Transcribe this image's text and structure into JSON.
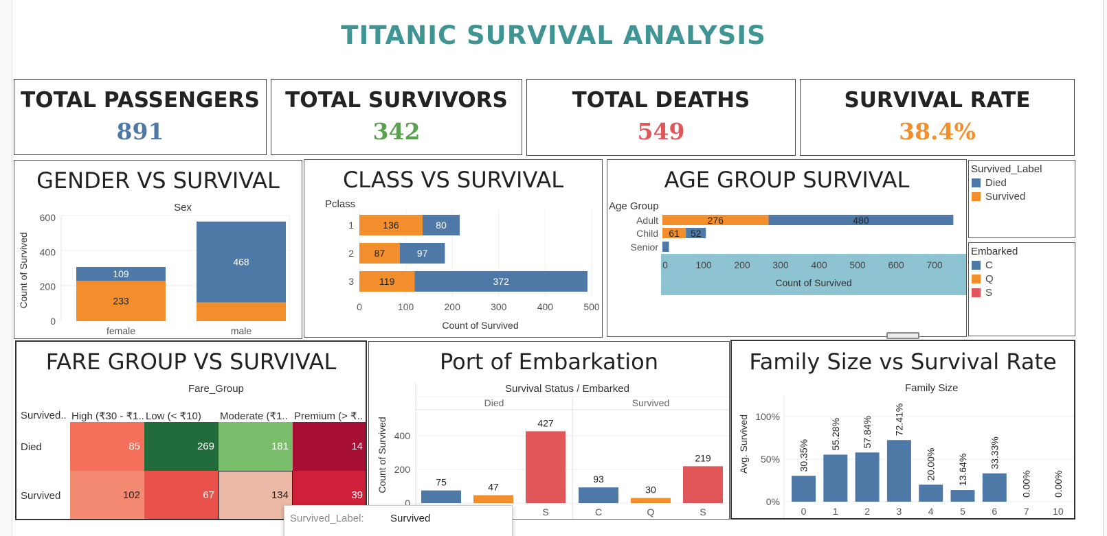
{
  "dashboard": {
    "title": "TITANIC SURVIVAL ANALYSIS"
  },
  "colors": {
    "died": "#4e79a7",
    "survived": "#f28e2b",
    "S": "#e15759",
    "title": "#3f9494",
    "age_highlight": "#8ec3d2"
  },
  "kpis": [
    {
      "label": "TOTAL PASSENGERS",
      "value": "891",
      "color": "#4e79a7"
    },
    {
      "label": "TOTAL SURVIVORS",
      "value": "342",
      "color": "#59a14f"
    },
    {
      "label": "TOTAL DEATHS",
      "value": "549",
      "color": "#e15759"
    },
    {
      "label": "SURVIVAL RATE",
      "value": "38.4%",
      "color": "#f28e2b"
    }
  ],
  "legends": {
    "survived": {
      "title": "Survived_Label",
      "items": [
        {
          "label": "Died",
          "color": "#4e79a7"
        },
        {
          "label": "Survived",
          "color": "#f28e2b"
        }
      ]
    },
    "embarked": {
      "title": "Embarked",
      "items": [
        {
          "label": "C",
          "color": "#4e79a7"
        },
        {
          "label": "Q",
          "color": "#f28e2b"
        },
        {
          "label": "S",
          "color": "#e15759"
        }
      ]
    }
  },
  "tooltip": {
    "key": "Survived_Label:",
    "value": "Survived"
  },
  "panels": {
    "gender": {
      "title": "GENDER VS SURVIVAL",
      "header": "Sex"
    },
    "class": {
      "title": "CLASS VS SURVIVAL",
      "header": "Pclass"
    },
    "age": {
      "title": "AGE GROUP SURVIVAL",
      "header": "Age Group"
    },
    "fare": {
      "title": "FARE GROUP VS SURVIVAL",
      "header": "Fare_Group"
    },
    "port": {
      "title": "Port of Embarkation",
      "header": "Survival Status  /  Embarked"
    },
    "family": {
      "title": "Family Size vs Survival Rate",
      "header": "Family Size"
    }
  },
  "chart_data": [
    {
      "type": "bar",
      "title": "GENDER VS SURVIVAL",
      "xlabel": "Sex",
      "ylabel": "Count of Survived",
      "categories": [
        "female",
        "male"
      ],
      "series": [
        {
          "name": "Survived",
          "values": [
            233,
            109
          ]
        },
        {
          "name": "Died",
          "values": [
            81,
            468
          ]
        }
      ],
      "labels": [
        [
          "233",
          ""
        ],
        [
          "109",
          "468"
        ]
      ],
      "stacked": true,
      "ylim": [
        0,
        620
      ],
      "yticks": [
        "0",
        "200",
        "400",
        "600"
      ]
    },
    {
      "type": "bar",
      "orientation": "horizontal",
      "title": "CLASS VS SURVIVAL",
      "xlabel": "Count of Survived",
      "ylabel": "Pclass",
      "categories": [
        "1",
        "2",
        "3"
      ],
      "series": [
        {
          "name": "Survived",
          "values": [
            136,
            87,
            119
          ]
        },
        {
          "name": "Died",
          "values": [
            80,
            97,
            372
          ]
        }
      ],
      "stacked": true,
      "xlim": [
        0,
        500
      ],
      "xticks": [
        "0",
        "100",
        "200",
        "300",
        "400",
        "500"
      ]
    },
    {
      "type": "bar",
      "orientation": "horizontal",
      "title": "AGE GROUP SURVIVAL",
      "xlabel": "Count of Survived",
      "ylabel": "Age Group",
      "categories": [
        "Adult",
        "Child",
        "Senior"
      ],
      "series": [
        {
          "name": "Survived",
          "values": [
            276,
            61,
            0
          ]
        },
        {
          "name": "Died",
          "values": [
            480,
            52,
            17
          ]
        }
      ],
      "labels": [
        [
          "276",
          "61",
          ""
        ],
        [
          "480",
          "52",
          ""
        ]
      ],
      "stacked": true,
      "xlim": [
        0,
        740
      ],
      "xticks": [
        "0",
        "100",
        "200",
        "300",
        "400",
        "500",
        "600",
        "700"
      ]
    },
    {
      "type": "heatmap",
      "title": "FARE GROUP VS SURVIVAL",
      "xlabel": "Fare_Group",
      "ylabel": "Survived..",
      "columns": [
        "High (₹30 - ₹1..",
        "Low (< ₹10)",
        "Moderate (₹1..",
        "Premium (> ₹.."
      ],
      "rows": [
        "Died",
        "Survived"
      ],
      "values": [
        [
          85,
          269,
          181,
          14
        ],
        [
          102,
          67,
          134,
          39
        ]
      ],
      "colors": [
        [
          "#f4705a",
          "#226c3c",
          "#79bd6a",
          "#a80f35"
        ],
        [
          "#f58a72",
          "#e8504a",
          "#ebb9a5",
          "#cf213b"
        ]
      ]
    },
    {
      "type": "bar",
      "title": "Port of Embarkation",
      "xlabel": "Survival Status  /  Embarked",
      "ylabel": "Count of Survived",
      "groups": [
        {
          "name": "Died",
          "categories": [
            "C",
            "Q",
            "S"
          ],
          "values": [
            75,
            47,
            427
          ]
        },
        {
          "name": "Survived",
          "categories": [
            "C",
            "Q",
            "S"
          ],
          "values": [
            93,
            30,
            219
          ]
        }
      ],
      "ylim": [
        0,
        470
      ],
      "yticks": [
        "0",
        "200",
        "400"
      ]
    },
    {
      "type": "bar",
      "title": "Family Size vs Survival Rate",
      "xlabel": "Family Size",
      "ylabel": "Avg. Survived",
      "categories": [
        "0",
        "1",
        "2",
        "3",
        "4",
        "5",
        "6",
        "7",
        "10"
      ],
      "values": [
        30.35,
        55.28,
        57.84,
        72.41,
        20.0,
        13.64,
        33.33,
        0.0,
        0.0
      ],
      "labels": [
        "30.35%",
        "55.28%",
        "57.84%",
        "72.41%",
        "20.00%",
        "13.64%",
        "33.33%",
        "0.00%",
        "0.00%"
      ],
      "ylim": [
        0,
        110
      ],
      "yticks": [
        "0%",
        "50%",
        "100%"
      ]
    }
  ]
}
